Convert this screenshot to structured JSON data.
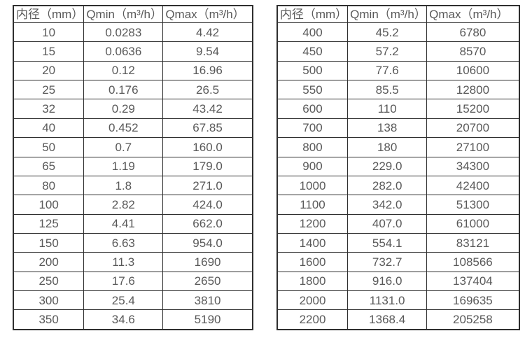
{
  "colors": {
    "border": "#2f2f2f",
    "text": "#595959",
    "background": "#ffffff"
  },
  "chart_data": [
    {
      "type": "table",
      "name": "flow-table-small-diameters",
      "columns": [
        "内径（mm）",
        "Qmin（m³/h）",
        "Qmax（m³/h）"
      ],
      "rows": [
        [
          "10",
          "0.0283",
          "4.42"
        ],
        [
          "15",
          "0.0636",
          "9.54"
        ],
        [
          "20",
          "0.12",
          "16.96"
        ],
        [
          "25",
          "0.176",
          "26.5"
        ],
        [
          "32",
          "0.29",
          "43.42"
        ],
        [
          "40",
          "0.452",
          "67.85"
        ],
        [
          "50",
          "0.7",
          "160.0"
        ],
        [
          "65",
          "1.19",
          "179.0"
        ],
        [
          "80",
          "1.8",
          "271.0"
        ],
        [
          "100",
          "2.82",
          "424.0"
        ],
        [
          "125",
          "4.41",
          "662.0"
        ],
        [
          "150",
          "6.63",
          "954.0"
        ],
        [
          "200",
          "11.3",
          "1690"
        ],
        [
          "250",
          "17.6",
          "2650"
        ],
        [
          "300",
          "25.4",
          "3810"
        ],
        [
          "350",
          "34.6",
          "5190"
        ]
      ]
    },
    {
      "type": "table",
      "name": "flow-table-large-diameters",
      "columns": [
        "内径（mm）",
        "Qmin（m³/h）",
        "Qmax（m³/h）"
      ],
      "rows": [
        [
          "400",
          "45.2",
          "6780"
        ],
        [
          "450",
          "57.2",
          "8570"
        ],
        [
          "500",
          "77.6",
          "10600"
        ],
        [
          "550",
          "85.5",
          "12800"
        ],
        [
          "600",
          "110",
          "15200"
        ],
        [
          "700",
          "138",
          "20700"
        ],
        [
          "800",
          "180",
          "27100"
        ],
        [
          "900",
          "229.0",
          "34300"
        ],
        [
          "1000",
          "282.0",
          "42400"
        ],
        [
          "1100",
          "342.0",
          "51300"
        ],
        [
          "1200",
          "407.0",
          "61000"
        ],
        [
          "1400",
          "554.1",
          "83121"
        ],
        [
          "1600",
          "732.7",
          "108566"
        ],
        [
          "1800",
          "916.0",
          "137404"
        ],
        [
          "2000",
          "1131.0",
          "169635"
        ],
        [
          "2200",
          "1368.4",
          "205258"
        ]
      ]
    }
  ]
}
